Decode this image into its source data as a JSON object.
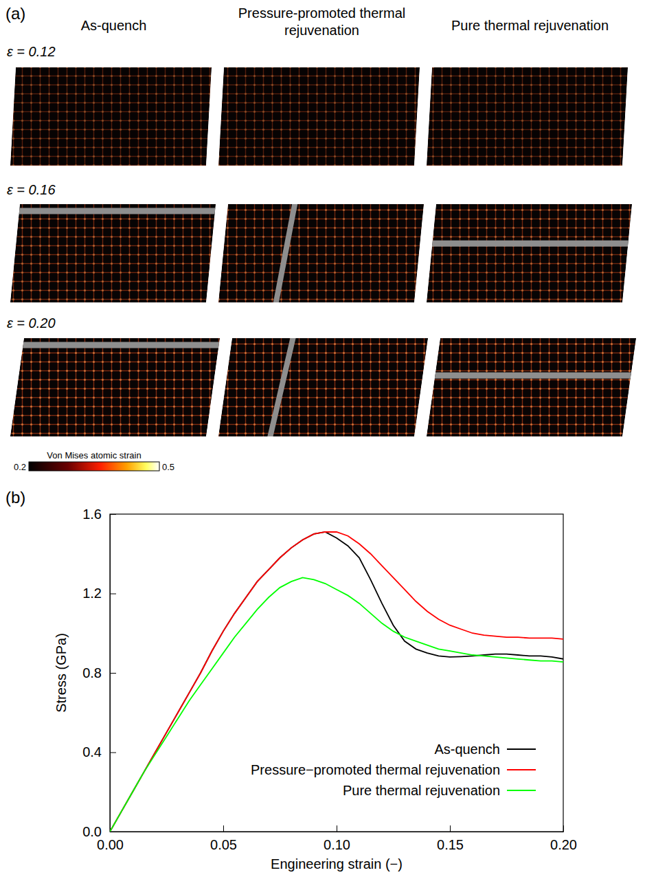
{
  "chart_data": [
    {
      "type": "image_grid",
      "panel": "(a)",
      "columns": [
        "As-quench",
        "Pressure-promoted thermal rejuvenation",
        "Pure thermal rejuvenation"
      ],
      "rows": [
        "ε = 0.12",
        "ε = 0.16",
        "ε = 0.20"
      ],
      "colorbar": {
        "title": "Von Mises atomic strain",
        "range": [
          0.2,
          0.5
        ],
        "ticks": [
          0.2,
          0.5
        ]
      }
    },
    {
      "type": "line",
      "panel": "(b)",
      "xlabel": "Engineering strain (−)",
      "ylabel": "Stress (GPa)",
      "xlim": [
        0,
        0.2
      ],
      "ylim": [
        0,
        1.6
      ],
      "xticks": [
        {
          "value": 0,
          "label": "0.00"
        },
        0.05,
        {
          "value": 0.1,
          "label": "0.10"
        },
        0.15,
        {
          "value": 0.2,
          "label": "0.20"
        }
      ],
      "yticks": [
        {
          "value": 0,
          "label": "0.0"
        },
        0.4,
        0.8,
        1.2,
        1.6
      ],
      "legend": "lower right",
      "x": [
        0,
        0.005,
        0.01,
        0.015,
        0.02,
        0.025,
        0.03,
        0.035,
        0.04,
        0.045,
        0.05,
        0.055,
        0.06,
        0.065,
        0.07,
        0.075,
        0.08,
        0.085,
        0.09,
        0.095,
        0.1,
        0.105,
        0.11,
        0.115,
        0.12,
        0.125,
        0.13,
        0.135,
        0.14,
        0.145,
        0.15,
        0.155,
        0.16,
        0.165,
        0.17,
        0.175,
        0.18,
        0.185,
        0.19,
        0.195,
        0.2
      ],
      "series": [
        {
          "name": "As-quench",
          "color": "#000000",
          "values": [
            0,
            0.1,
            0.2,
            0.3,
            0.4,
            0.5,
            0.6,
            0.7,
            0.8,
            0.91,
            1.01,
            1.1,
            1.18,
            1.26,
            1.32,
            1.38,
            1.43,
            1.47,
            1.5,
            1.51,
            1.48,
            1.44,
            1.38,
            1.27,
            1.15,
            1.04,
            0.96,
            0.92,
            0.9,
            0.885,
            0.88,
            0.882,
            0.885,
            0.89,
            0.895,
            0.895,
            0.89,
            0.885,
            0.885,
            0.88,
            0.87
          ]
        },
        {
          "name": "Pressure−promoted thermal rejuvenation",
          "color": "#ff0000",
          "values": [
            0,
            0.1,
            0.2,
            0.3,
            0.4,
            0.5,
            0.6,
            0.7,
            0.8,
            0.91,
            1.01,
            1.1,
            1.18,
            1.26,
            1.32,
            1.38,
            1.43,
            1.47,
            1.5,
            1.51,
            1.51,
            1.49,
            1.45,
            1.4,
            1.34,
            1.28,
            1.22,
            1.16,
            1.11,
            1.07,
            1.04,
            1.02,
            1.0,
            0.99,
            0.985,
            0.98,
            0.98,
            0.975,
            0.975,
            0.975,
            0.97
          ]
        },
        {
          "name": "Pure thermal rejuvenation",
          "color": "#00ff00",
          "values": [
            0,
            0.1,
            0.2,
            0.3,
            0.39,
            0.48,
            0.57,
            0.66,
            0.74,
            0.82,
            0.9,
            0.98,
            1.05,
            1.12,
            1.18,
            1.23,
            1.26,
            1.28,
            1.27,
            1.25,
            1.22,
            1.19,
            1.15,
            1.1,
            1.05,
            1.01,
            0.98,
            0.96,
            0.94,
            0.92,
            0.91,
            0.9,
            0.89,
            0.885,
            0.88,
            0.875,
            0.87,
            0.865,
            0.86,
            0.86,
            0.855
          ]
        }
      ]
    }
  ]
}
